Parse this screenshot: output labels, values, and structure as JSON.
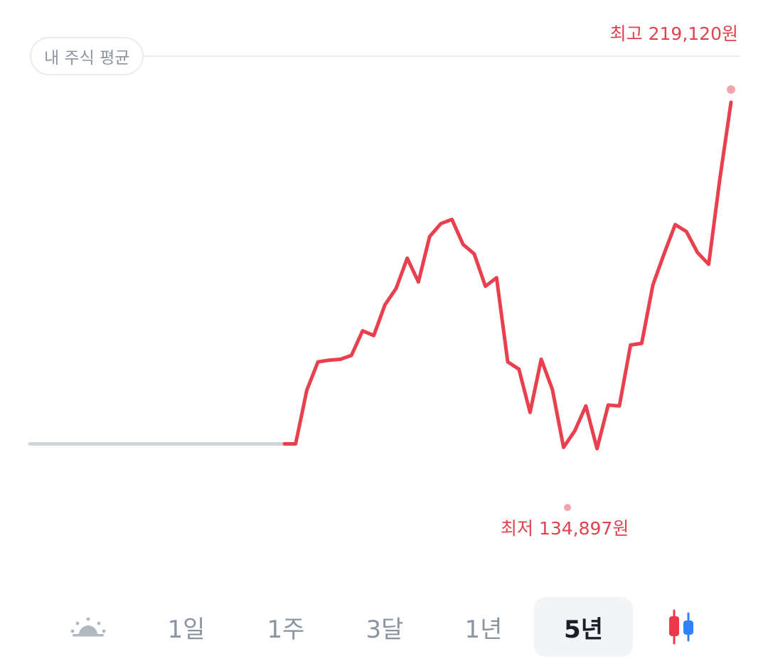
{
  "avg_badge": "내 주식 평균",
  "high_label": "최고 219,120원",
  "low_label": "최저 134,897원",
  "tabs": [
    {
      "label": "",
      "icon": "sun-icon"
    },
    {
      "label": "1일"
    },
    {
      "label": "1주"
    },
    {
      "label": "3달"
    },
    {
      "label": "1년"
    },
    {
      "label": "5년",
      "selected": true
    },
    {
      "label": "",
      "icon": "candlestick-icon"
    }
  ],
  "colors": {
    "line": "#e8404e",
    "inactive_line": "#d1d6db",
    "accent_text": "#e0424e",
    "muted_text": "#8b95a1",
    "selected_bg": "#f2f4f6",
    "candle_red": "#f0364b",
    "candle_blue": "#3182f6"
  },
  "chart_data": {
    "type": "line",
    "ylim": [
      133500,
      228000
    ],
    "high": 219120,
    "low": 134897,
    "flat_prefix_value": 140000,
    "values": [
      140000,
      140000,
      152400,
      159000,
      159400,
      159600,
      160500,
      166200,
      165100,
      172200,
      176000,
      183000,
      177500,
      188000,
      191000,
      192000,
      186200,
      184000,
      176500,
      178500,
      159000,
      157300,
      147300,
      159600,
      152600,
      139200,
      143000,
      148800,
      138900,
      149000,
      148800,
      162900,
      163300,
      176800,
      184000,
      190800,
      189200,
      184300,
      181600,
      201400,
      219120
    ]
  }
}
